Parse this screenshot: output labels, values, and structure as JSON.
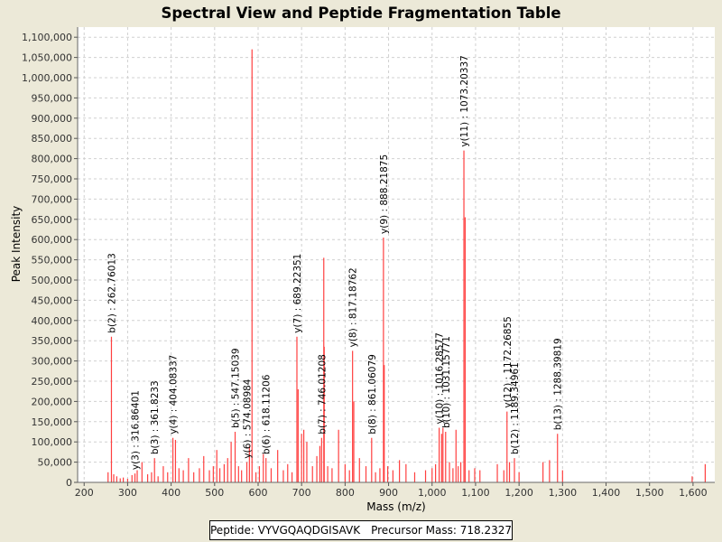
{
  "chart_data": {
    "type": "spectrum",
    "title": "Spectral View and Peptide Fragmentation Table",
    "xlabel": "Mass (m/z)",
    "ylabel": "Peak Intensity",
    "xlim": [
      185,
      1650
    ],
    "ylim": [
      0,
      1125000
    ],
    "x_ticks": [
      200,
      300,
      400,
      500,
      600,
      700,
      800,
      900,
      1000,
      1100,
      1200,
      1300,
      1400,
      1500,
      1600
    ],
    "y_ticks": [
      0,
      50000,
      100000,
      150000,
      200000,
      250000,
      300000,
      350000,
      400000,
      450000,
      500000,
      550000,
      600000,
      650000,
      700000,
      750000,
      800000,
      850000,
      900000,
      950000,
      1000000,
      1050000,
      1100000
    ],
    "peak_color": "#ff4040",
    "peaks": [
      [
        255,
        25000
      ],
      [
        262.76,
        360000
      ],
      [
        268,
        20000
      ],
      [
        275,
        15000
      ],
      [
        283,
        10000
      ],
      [
        290,
        12000
      ],
      [
        300,
        9000
      ],
      [
        310,
        18000
      ],
      [
        316.86,
        22000
      ],
      [
        322,
        30000
      ],
      [
        333,
        50000
      ],
      [
        346,
        20000
      ],
      [
        355,
        25000
      ],
      [
        361.82,
        60000
      ],
      [
        370,
        15000
      ],
      [
        382,
        40000
      ],
      [
        392,
        25000
      ],
      [
        404.08,
        110000
      ],
      [
        410,
        105000
      ],
      [
        418,
        35000
      ],
      [
        428,
        30000
      ],
      [
        440,
        60000
      ],
      [
        452,
        25000
      ],
      [
        465,
        35000
      ],
      [
        475,
        65000
      ],
      [
        488,
        30000
      ],
      [
        497,
        40000
      ],
      [
        505,
        80000
      ],
      [
        512,
        35000
      ],
      [
        522,
        45000
      ],
      [
        530,
        60000
      ],
      [
        538,
        100000
      ],
      [
        547.15,
        125000
      ],
      [
        555,
        40000
      ],
      [
        562,
        30000
      ],
      [
        574.09,
        50000
      ],
      [
        580,
        90000
      ],
      [
        586,
        1070000
      ],
      [
        595,
        25000
      ],
      [
        603,
        40000
      ],
      [
        612,
        70000
      ],
      [
        618.11,
        60000
      ],
      [
        630,
        35000
      ],
      [
        645,
        80000
      ],
      [
        658,
        30000
      ],
      [
        668,
        45000
      ],
      [
        678,
        25000
      ],
      [
        689.22,
        360000
      ],
      [
        692,
        230000
      ],
      [
        700,
        120000
      ],
      [
        705,
        130000
      ],
      [
        712,
        100000
      ],
      [
        725,
        40000
      ],
      [
        735,
        65000
      ],
      [
        742,
        90000
      ],
      [
        746.01,
        110000
      ],
      [
        751,
        555000
      ],
      [
        752,
        335000
      ],
      [
        760,
        40000
      ],
      [
        770,
        35000
      ],
      [
        785,
        130000
      ],
      [
        800,
        45000
      ],
      [
        810,
        30000
      ],
      [
        817.19,
        325000
      ],
      [
        820,
        200000
      ],
      [
        833,
        60000
      ],
      [
        848,
        40000
      ],
      [
        861.06,
        110000
      ],
      [
        870,
        25000
      ],
      [
        880,
        35000
      ],
      [
        888.22,
        605000
      ],
      [
        890,
        290000
      ],
      [
        898,
        40000
      ],
      [
        910,
        30000
      ],
      [
        925,
        55000
      ],
      [
        940,
        45000
      ],
      [
        960,
        25000
      ],
      [
        985,
        30000
      ],
      [
        1000,
        35000
      ],
      [
        1008,
        45000
      ],
      [
        1016.29,
        135000
      ],
      [
        1022,
        120000
      ],
      [
        1025,
        135000
      ],
      [
        1031.16,
        125000
      ],
      [
        1040,
        50000
      ],
      [
        1048,
        35000
      ],
      [
        1055,
        130000
      ],
      [
        1060,
        40000
      ],
      [
        1066,
        50000
      ],
      [
        1073.2,
        820000
      ],
      [
        1076,
        655000
      ],
      [
        1085,
        30000
      ],
      [
        1098,
        35000
      ],
      [
        1110,
        30000
      ],
      [
        1150,
        45000
      ],
      [
        1165,
        30000
      ],
      [
        1172.27,
        175000
      ],
      [
        1178,
        50000
      ],
      [
        1189.35,
        60000
      ],
      [
        1200,
        25000
      ],
      [
        1255,
        50000
      ],
      [
        1270,
        55000
      ],
      [
        1288.4,
        120000
      ],
      [
        1300,
        30000
      ],
      [
        1598,
        15000
      ],
      [
        1628,
        45000
      ]
    ],
    "annotations": [
      {
        "mz": 262.76,
        "intensity": 360000,
        "label": "b(2) : 262.76013"
      },
      {
        "mz": 316.86,
        "intensity": 22000,
        "label": "y(3) : 316.86401"
      },
      {
        "mz": 361.82,
        "intensity": 60000,
        "label": "b(3) : 361.8233"
      },
      {
        "mz": 404.08,
        "intensity": 110000,
        "label": "y(4) : 404.08337"
      },
      {
        "mz": 547.15,
        "intensity": 125000,
        "label": "b(5) : 547.15039"
      },
      {
        "mz": 574.09,
        "intensity": 50000,
        "label": "y(6) : 574.08984"
      },
      {
        "mz": 618.11,
        "intensity": 60000,
        "label": "b(6) : 618.11206"
      },
      {
        "mz": 689.22,
        "intensity": 360000,
        "label": "y(7) : 689.22351"
      },
      {
        "mz": 746.01,
        "intensity": 110000,
        "label": "b(7) : 746.01208"
      },
      {
        "mz": 817.19,
        "intensity": 325000,
        "label": "y(8) : 817.18762"
      },
      {
        "mz": 861.06,
        "intensity": 110000,
        "label": "b(8) : 861.06079"
      },
      {
        "mz": 888.22,
        "intensity": 605000,
        "label": "y(9) : 888.21875"
      },
      {
        "mz": 1016.29,
        "intensity": 135000,
        "label": "y(10) : 1016.28577"
      },
      {
        "mz": 1031.16,
        "intensity": 125000,
        "label": "b(10) : 1031.15771"
      },
      {
        "mz": 1073.2,
        "intensity": 820000,
        "label": "y(11) : 1073.20337"
      },
      {
        "mz": 1172.27,
        "intensity": 175000,
        "label": "y(12) : 1172.26855"
      },
      {
        "mz": 1189.35,
        "intensity": 60000,
        "label": "b(12) : 1189.34961"
      },
      {
        "mz": 1288.4,
        "intensity": 120000,
        "label": "b(13) : 1288.39819"
      }
    ]
  },
  "info": {
    "peptide": "Peptide: VYVGQAQDGISAVK",
    "precursor": "Precursor Mass: 718.2327"
  }
}
